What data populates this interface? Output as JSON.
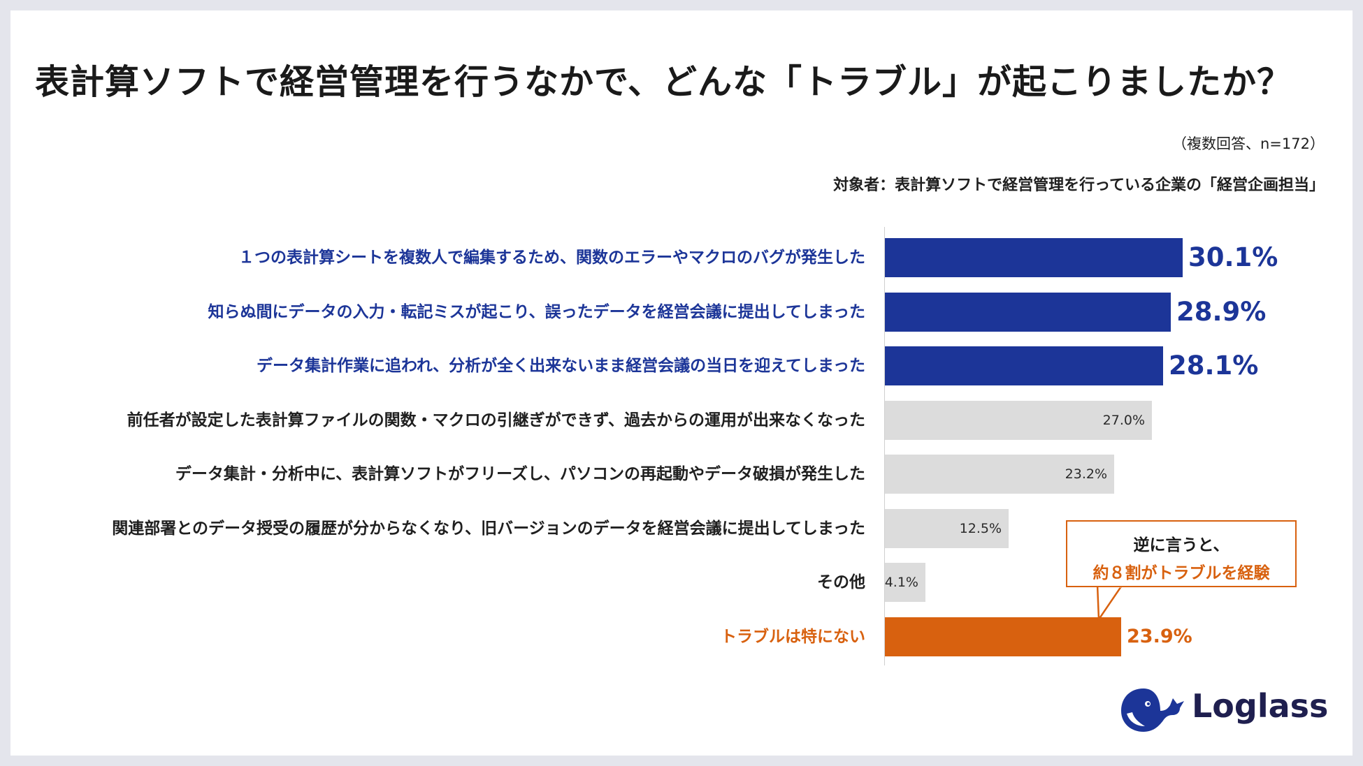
{
  "title": "表計算ソフトで経営管理を行うなかで、どんな「トラブル」が起こりましたか？",
  "note": "（複数回答、n=172）",
  "target": "対象者：表計算ソフトで経営管理を行っている企業の「経営企画担当」",
  "callout": {
    "line1": "逆に言うと、",
    "line2": "約８割がトラブルを経験"
  },
  "logo": {
    "text": "Loglass"
  },
  "colors": {
    "highlight": "#1c3598",
    "neutral": "#dcdcdc",
    "accent": "#d8610f"
  },
  "chart_data": {
    "type": "bar",
    "orientation": "horizontal",
    "categories": [
      "１つの表計算シートを複数人で編集するため、関数のエラーやマクロのバグが発生した",
      "知らぬ間にデータの入力・転記ミスが起こり、誤ったデータを経営会議に提出してしまった",
      "データ集計作業に追われ、分析が全く出来ないまま経営会議の当日を迎えてしまった",
      "前任者が設定した表計算ファイルの関数・マクロの引継ぎができず、過去からの運用が出来なくなった",
      "データ集計・分析中に、表計算ソフトがフリーズし、パソコンの再起動やデータ破損が発生した",
      "関連部署とのデータ授受の履歴が分からなくなり、旧バージョンのデータを経営会議に提出してしまった",
      "その他",
      "トラブルは特にない"
    ],
    "values": [
      30.1,
      28.9,
      28.1,
      27.0,
      23.2,
      12.5,
      4.1,
      23.9
    ],
    "value_labels": [
      "30.1%",
      "28.9%",
      "28.1%",
      "27.0%",
      "23.2%",
      "12.5%",
      "4.1%",
      "23.9%"
    ],
    "styles": [
      "highlight",
      "highlight",
      "highlight",
      "neutral",
      "neutral",
      "neutral",
      "neutral",
      "accent"
    ],
    "xlim": [
      0,
      41
    ],
    "grid": false,
    "legend": "none"
  }
}
